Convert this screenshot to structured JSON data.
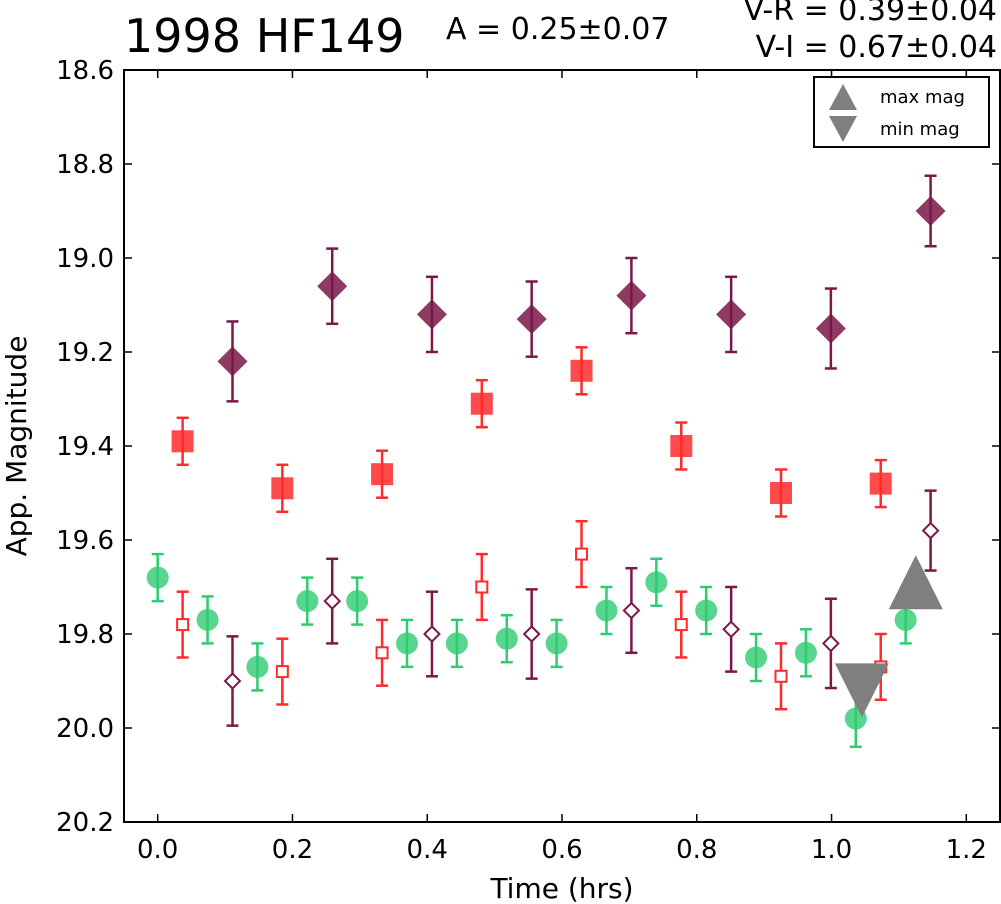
{
  "chart_data": {
    "type": "scatter",
    "title": "1998 HF149",
    "annotations": {
      "amplitude": "A  = 0.25±0.07",
      "v_r": "V-R = 0.39±0.04",
      "v_i": "V-I  = 0.67±0.04"
    },
    "xlabel": "Time (hrs)",
    "ylabel": "App. Magnitude",
    "xlim": [
      -0.05,
      1.25
    ],
    "ylim": [
      20.2,
      18.6
    ],
    "y_inverted": true,
    "xticks": [
      "0.0",
      "0.2",
      "0.4",
      "0.6",
      "0.8",
      "1.0",
      "1.2"
    ],
    "yticks": [
      "18.6",
      "18.8",
      "19.0",
      "19.2",
      "19.4",
      "19.6",
      "19.8",
      "20.0",
      "20.2"
    ],
    "grid": false,
    "legend": {
      "placement": "top-right",
      "entries": [
        "max mag",
        "min mag"
      ]
    },
    "colors": {
      "green": "#2ecc71",
      "red": "#ff2b2b",
      "purple": "#7b1848",
      "gray": "#7f7f7f"
    },
    "series": [
      {
        "marker": "circle-filled",
        "color": "#2ecc71",
        "x": [
          0.0,
          0.074,
          0.148,
          0.222,
          0.296,
          0.37,
          0.444,
          0.518,
          0.592,
          0.666,
          0.74,
          0.814,
          0.888,
          0.962,
          1.036,
          1.11
        ],
        "y": [
          19.68,
          19.77,
          19.87,
          19.73,
          19.73,
          19.82,
          19.82,
          19.81,
          19.82,
          19.75,
          19.69,
          19.75,
          19.85,
          19.84,
          19.98,
          19.77
        ],
        "err": [
          0.05,
          0.05,
          0.05,
          0.05,
          0.05,
          0.05,
          0.05,
          0.05,
          0.05,
          0.05,
          0.05,
          0.05,
          0.05,
          0.05,
          0.06,
          0.05
        ]
      },
      {
        "marker": "square-filled",
        "color": "#ff2b2b",
        "x": [
          0.037,
          0.185,
          0.333,
          0.481,
          0.629,
          0.777,
          0.925,
          1.073
        ],
        "y": [
          19.39,
          19.49,
          19.46,
          19.31,
          19.24,
          19.4,
          19.5,
          19.48
        ],
        "err": [
          0.05,
          0.05,
          0.05,
          0.05,
          0.05,
          0.05,
          0.05,
          0.05
        ]
      },
      {
        "marker": "square-open",
        "color": "#ff2b2b",
        "x": [
          0.037,
          0.185,
          0.333,
          0.481,
          0.629,
          0.777,
          0.925,
          1.073
        ],
        "y": [
          19.78,
          19.88,
          19.84,
          19.7,
          19.63,
          19.78,
          19.89,
          19.87
        ],
        "err": [
          0.07,
          0.07,
          0.07,
          0.07,
          0.07,
          0.07,
          0.07,
          0.07
        ]
      },
      {
        "marker": "diamond-filled",
        "color": "#7b1848",
        "x": [
          0.111,
          0.259,
          0.407,
          0.555,
          0.703,
          0.851,
          0.999,
          1.147
        ],
        "y": [
          19.22,
          19.06,
          19.12,
          19.13,
          19.08,
          19.12,
          19.15,
          18.9
        ],
        "err": [
          0.085,
          0.08,
          0.08,
          0.08,
          0.08,
          0.08,
          0.085,
          0.075
        ]
      },
      {
        "marker": "diamond-open",
        "color": "#7b1848",
        "x": [
          0.111,
          0.259,
          0.407,
          0.555,
          0.703,
          0.851,
          0.999,
          1.147
        ],
        "y": [
          19.9,
          19.73,
          19.8,
          19.8,
          19.75,
          19.79,
          19.82,
          19.58
        ],
        "err": [
          0.095,
          0.09,
          0.09,
          0.095,
          0.09,
          0.09,
          0.095,
          0.085
        ]
      },
      {
        "name": "max mag",
        "marker": "triangle-up",
        "color": "#7f7f7f",
        "x": [
          1.125
        ],
        "y": [
          19.69
        ]
      },
      {
        "name": "min mag",
        "marker": "triangle-down",
        "color": "#7f7f7f",
        "x": [
          1.045
        ],
        "y": [
          19.92
        ]
      }
    ]
  }
}
